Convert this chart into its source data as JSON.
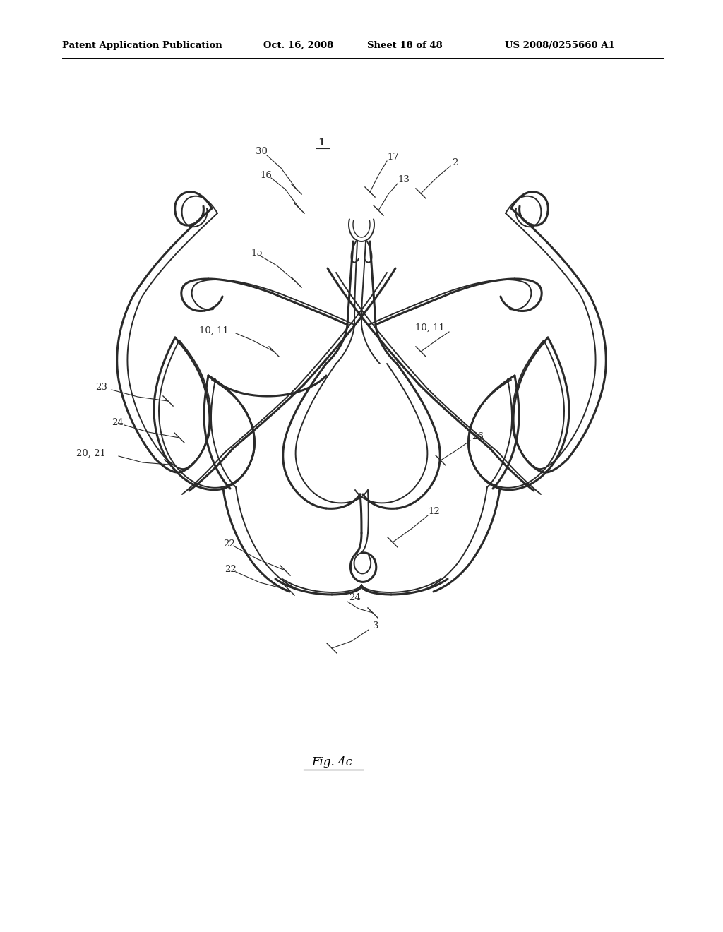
{
  "background_color": "#ffffff",
  "line_color": "#2a2a2a",
  "header1": "Patent Application Publication",
  "header2": "Oct. 16, 2008",
  "header3": "Sheet 18 of 48",
  "header4": "US 2008/0255660 A1",
  "fig_label": "Fig. 4c"
}
